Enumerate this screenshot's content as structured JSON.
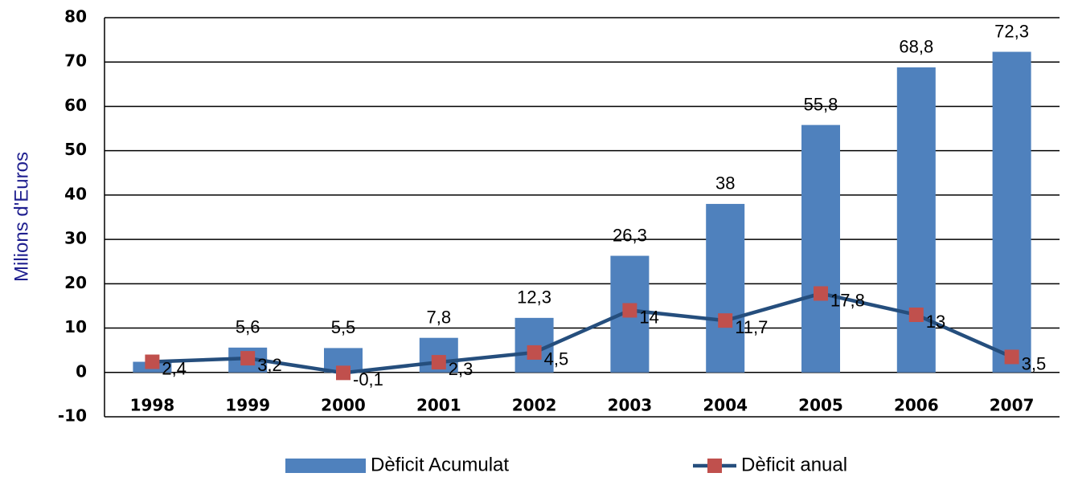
{
  "chart_data": {
    "type": "bar-line",
    "y_label": "Milions d'Euros",
    "categories": [
      "1998",
      "1999",
      "2000",
      "2001",
      "2002",
      "2003",
      "2004",
      "2005",
      "2006",
      "2007"
    ],
    "series": [
      {
        "name": "Dèficit Acumulat",
        "type": "bar",
        "color": "#4f81bd",
        "values": [
          2.4,
          5.6,
          5.5,
          7.8,
          12.3,
          26.3,
          38,
          55.8,
          68.8,
          72.3
        ],
        "value_labels": [
          null,
          "5,6",
          "5,5",
          "7,8",
          "12,3",
          "26,3",
          "38",
          "55,8",
          "68,8",
          "72,3"
        ]
      },
      {
        "name": "Dèficit anual",
        "type": "line",
        "color": "#254e7d",
        "marker_color": "#c0504d",
        "values": [
          2.4,
          3.2,
          -0.1,
          2.3,
          4.5,
          14,
          11.7,
          17.8,
          13,
          3.5
        ],
        "value_labels": [
          "2,4",
          "3,2",
          "-0,1",
          "2,3",
          "4,5",
          "14",
          "11,7",
          "17,8",
          "13",
          "3,5"
        ]
      }
    ],
    "ylim": [
      -10,
      80
    ],
    "yticks": [
      -10,
      0,
      10,
      20,
      30,
      40,
      50,
      60,
      70,
      80
    ],
    "grid": true,
    "legend": "bottom"
  }
}
